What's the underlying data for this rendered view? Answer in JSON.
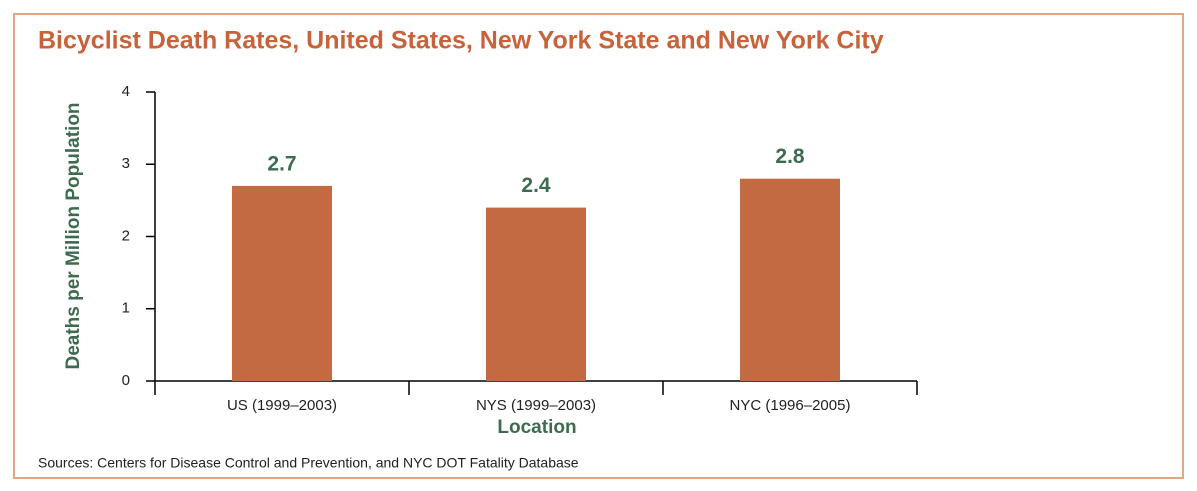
{
  "chart_data": {
    "type": "bar",
    "title": "Bicyclist Death Rates, United States, New York State and New York City",
    "x_label": "Location",
    "y_label": "Deaths per Million Population",
    "categories": [
      "US (1999–2003)",
      "NYS (1999–2003)",
      "NYC (1996–2005)"
    ],
    "values": [
      2.7,
      2.4,
      2.8
    ],
    "color": "#c46a43",
    "ylim": [
      0,
      4
    ],
    "yticks": [
      0,
      1,
      2,
      3,
      4
    ],
    "grid": false,
    "source": "Sources: Centers for Disease Control and Prevention, and NYC DOT Fatality Database"
  }
}
